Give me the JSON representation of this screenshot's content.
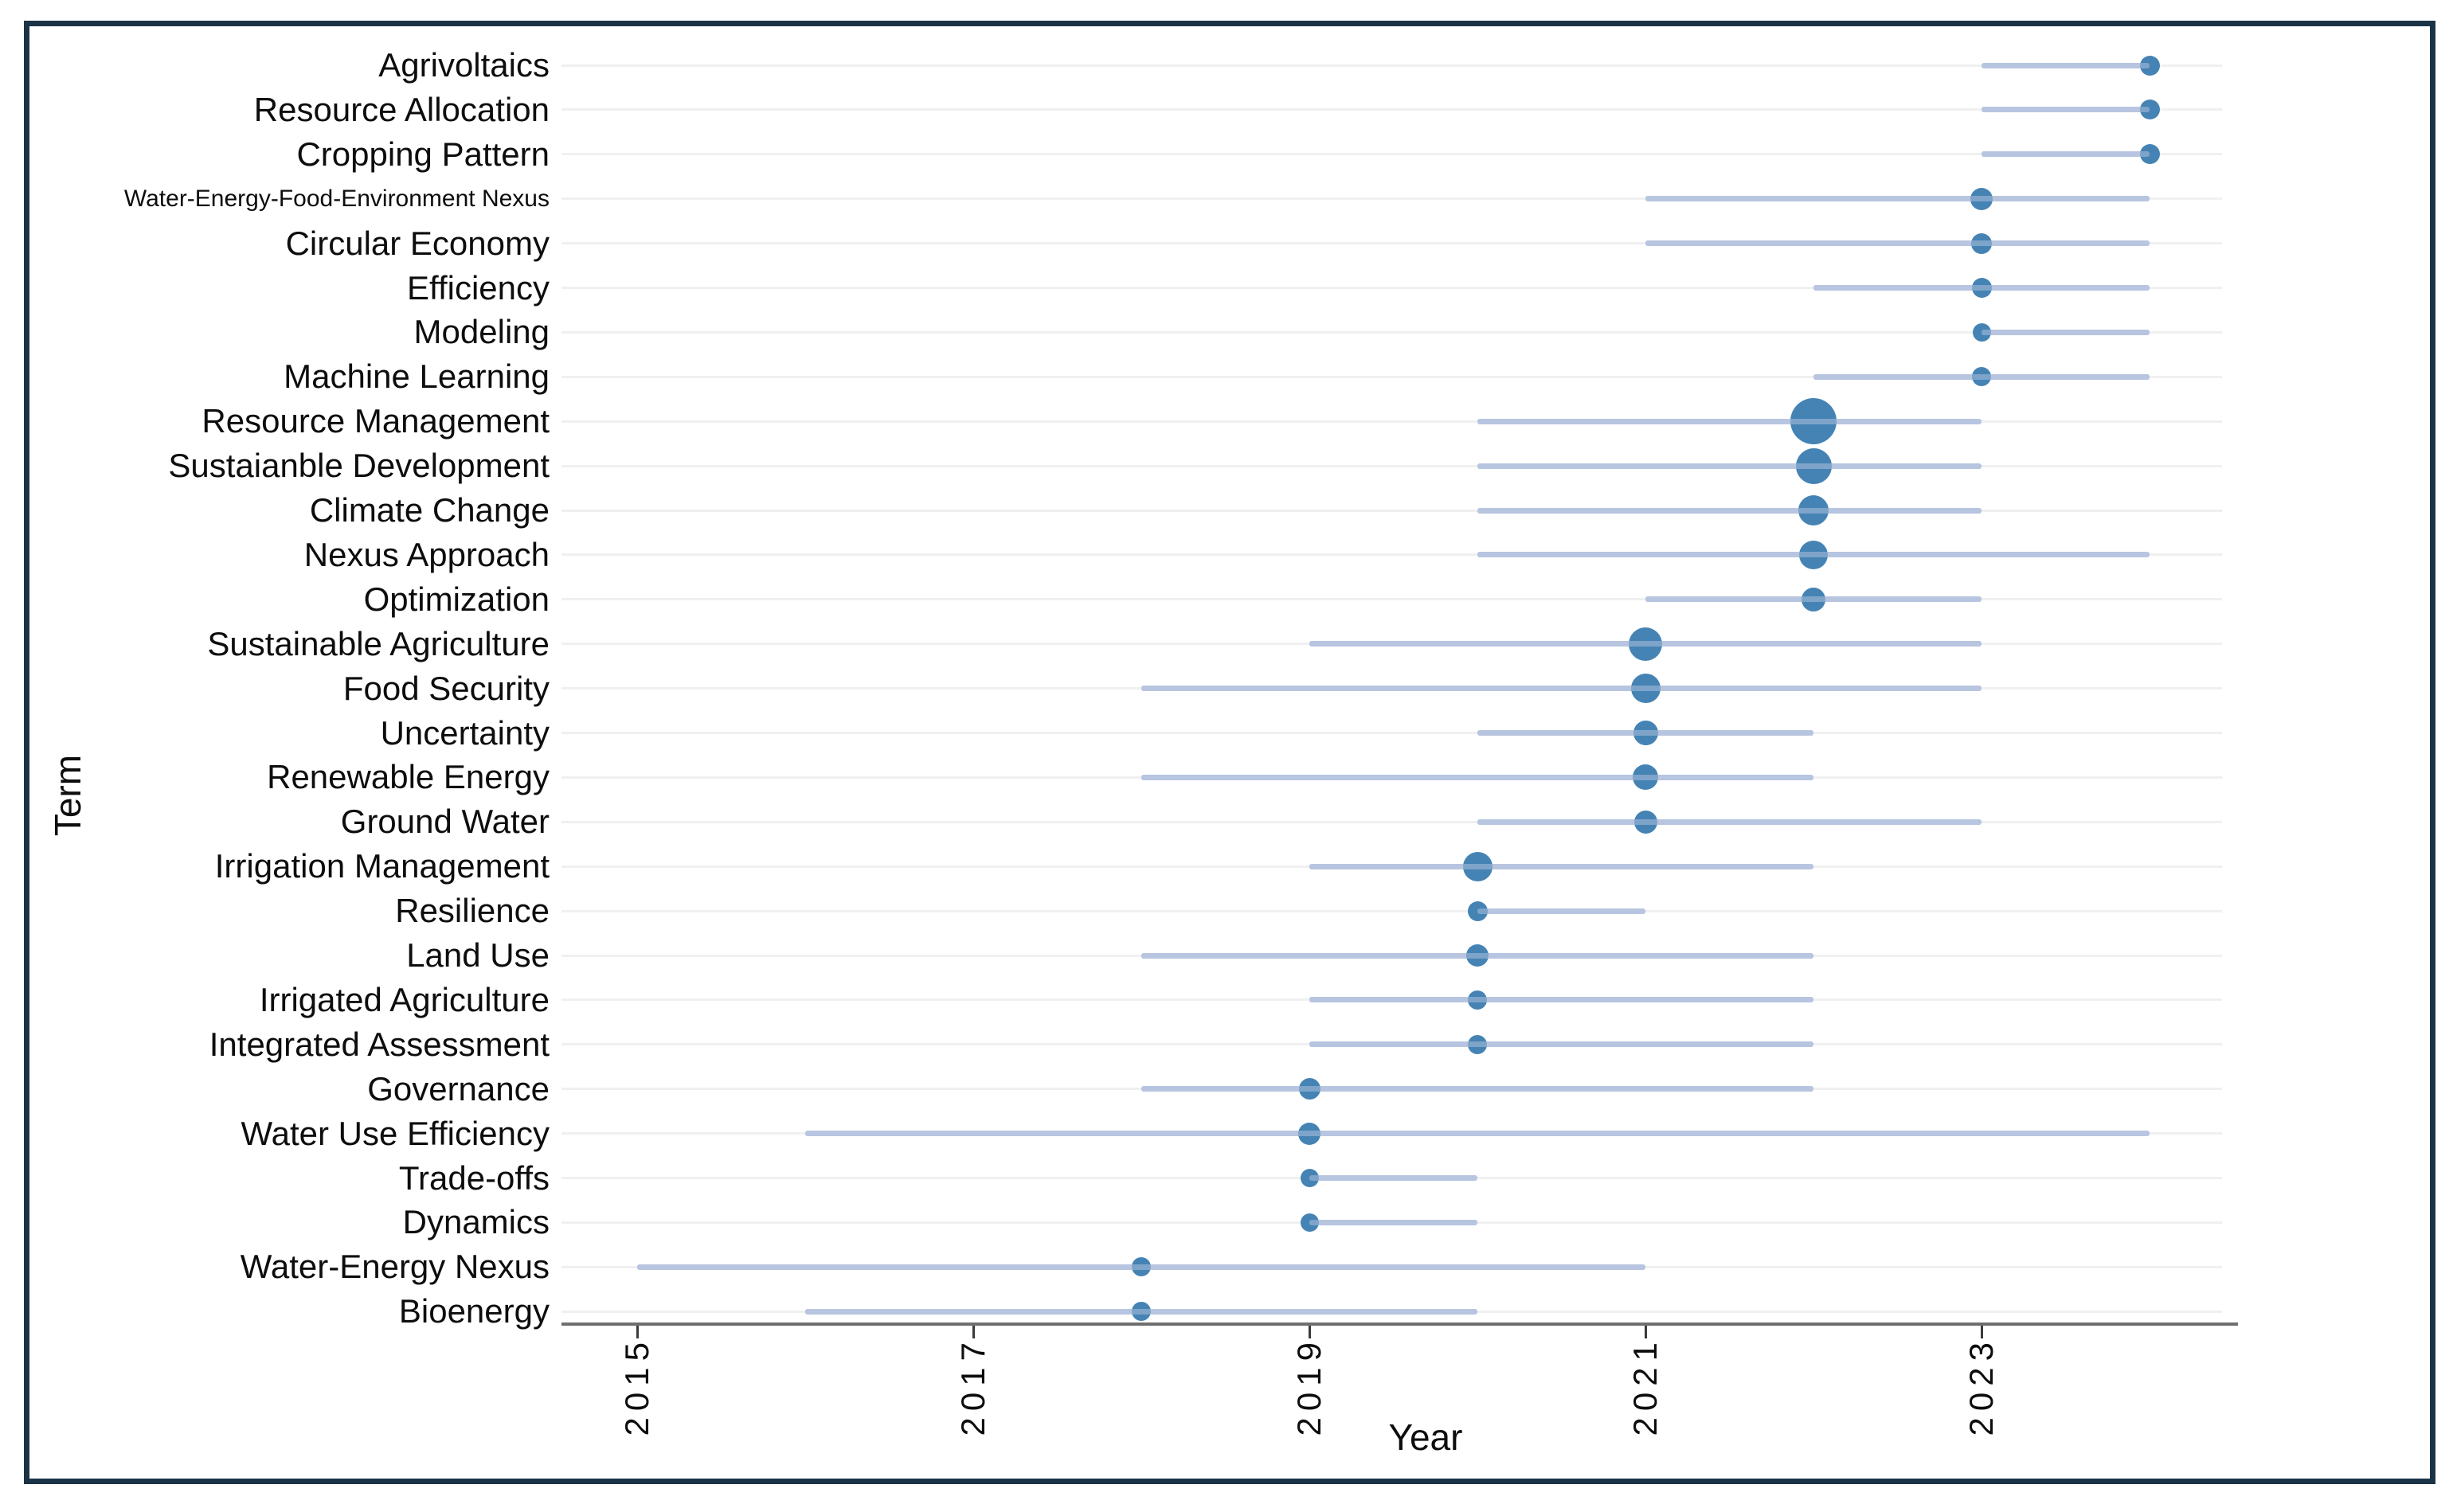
{
  "chart_data": {
    "type": "scatter",
    "variant": "trend-topics-dot-range",
    "title": "",
    "x_label": "Year",
    "y_label": "Term",
    "x_ticks": [
      "2015",
      "2017",
      "2019",
      "2021",
      "2023"
    ],
    "x_range": [
      2014.5,
      2024.6
    ],
    "grid": "horizontal-light",
    "legend": "none",
    "terms": [
      {
        "term": "Agrivoltaics",
        "year_q1": 2023,
        "year_median": 2024,
        "year_q3": 2024,
        "size": 25
      },
      {
        "term": "Resource Allocation",
        "year_q1": 2023,
        "year_median": 2024,
        "year_q3": 2024,
        "size": 25
      },
      {
        "term": "Cropping Pattern",
        "year_q1": 2023,
        "year_median": 2024,
        "year_q3": 2024,
        "size": 25
      },
      {
        "term": "Water-Energy-Food-Environment Nexus",
        "year_q1": 2021,
        "year_median": 2023,
        "year_q3": 2024,
        "size": 28
      },
      {
        "term": "Circular Economy",
        "year_q1": 2021,
        "year_median": 2023,
        "year_q3": 2024,
        "size": 26
      },
      {
        "term": "Efficiency",
        "year_q1": 2022,
        "year_median": 2023,
        "year_q3": 2024,
        "size": 25
      },
      {
        "term": "Modeling",
        "year_q1": 2023,
        "year_median": 2023,
        "year_q3": 2024,
        "size": 23
      },
      {
        "term": "Machine Learning",
        "year_q1": 2022,
        "year_median": 2023,
        "year_q3": 2024,
        "size": 24
      },
      {
        "term": "Resource Management",
        "year_q1": 2020,
        "year_median": 2022,
        "year_q3": 2023,
        "size": 58
      },
      {
        "term": "Sustaianble Development",
        "year_q1": 2020,
        "year_median": 2022,
        "year_q3": 2023,
        "size": 45
      },
      {
        "term": "Climate Change",
        "year_q1": 2020,
        "year_median": 2022,
        "year_q3": 2023,
        "size": 38
      },
      {
        "term": "Nexus Approach",
        "year_q1": 2020,
        "year_median": 2022,
        "year_q3": 2024,
        "size": 36
      },
      {
        "term": "Optimization",
        "year_q1": 2021,
        "year_median": 2022,
        "year_q3": 2023,
        "size": 30
      },
      {
        "term": "Sustainable Agriculture",
        "year_q1": 2019,
        "year_median": 2021,
        "year_q3": 2023,
        "size": 42
      },
      {
        "term": "Food Security",
        "year_q1": 2018,
        "year_median": 2021,
        "year_q3": 2023,
        "size": 37
      },
      {
        "term": "Uncertainty",
        "year_q1": 2020,
        "year_median": 2021,
        "year_q3": 2022,
        "size": 31
      },
      {
        "term": "Renewable Energy",
        "year_q1": 2018,
        "year_median": 2021,
        "year_q3": 2022,
        "size": 32
      },
      {
        "term": "Ground Water",
        "year_q1": 2020,
        "year_median": 2021,
        "year_q3": 2023,
        "size": 29
      },
      {
        "term": "Irrigation Management",
        "year_q1": 2019,
        "year_median": 2020,
        "year_q3": 2022,
        "size": 37
      },
      {
        "term": "Resilience",
        "year_q1": 2020,
        "year_median": 2020,
        "year_q3": 2021,
        "size": 25
      },
      {
        "term": "Land Use",
        "year_q1": 2018,
        "year_median": 2020,
        "year_q3": 2022,
        "size": 28
      },
      {
        "term": "Irrigated Agriculture",
        "year_q1": 2019,
        "year_median": 2020,
        "year_q3": 2022,
        "size": 24
      },
      {
        "term": "Integrated Assessment",
        "year_q1": 2019,
        "year_median": 2020,
        "year_q3": 2022,
        "size": 24
      },
      {
        "term": "Governance",
        "year_q1": 2018,
        "year_median": 2019,
        "year_q3": 2022,
        "size": 27
      },
      {
        "term": "Water Use Efficiency",
        "year_q1": 2016,
        "year_median": 2019,
        "year_q3": 2024,
        "size": 28
      },
      {
        "term": "Trade-offs",
        "year_q1": 2019,
        "year_median": 2019,
        "year_q3": 2020,
        "size": 23
      },
      {
        "term": "Dynamics",
        "year_q1": 2019,
        "year_median": 2019,
        "year_q3": 2020,
        "size": 23
      },
      {
        "term": "Water-Energy Nexus",
        "year_q1": 2015,
        "year_median": 2018,
        "year_q3": 2021,
        "size": 24
      },
      {
        "term": "Bioenergy",
        "year_q1": 2016,
        "year_median": 2018,
        "year_q3": 2020,
        "size": 24
      }
    ]
  },
  "colors": {
    "dot": "#4583b4",
    "range_line": "#b7c5e0",
    "range_line_overlay": "rgba(183,197,224,0.5)",
    "gridline": "#f0f0f0",
    "axis_line": "#6e6e6e",
    "tick": "#3a3a3a",
    "frame_border": "#1b3347",
    "background": "#ffffff"
  }
}
